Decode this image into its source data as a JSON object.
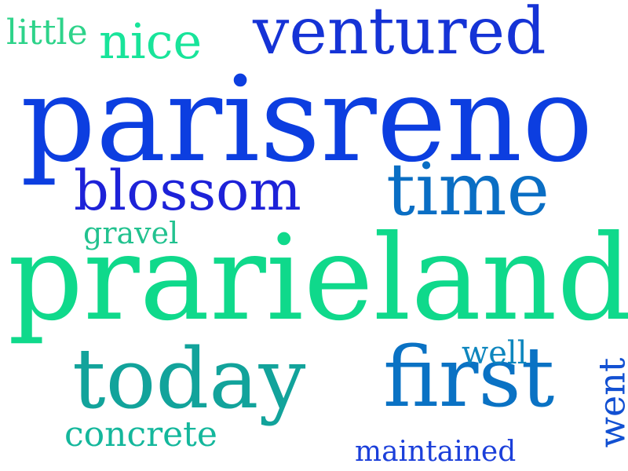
{
  "words": [
    {
      "text": "parisreno",
      "color": "#0c3ee0"
    },
    {
      "text": "prarieland",
      "color": "#0fd98b"
    },
    {
      "text": "today",
      "color": "#12a39b"
    },
    {
      "text": "first",
      "color": "#0a72c4"
    },
    {
      "text": "ventured",
      "color": "#1533d6"
    },
    {
      "text": "time",
      "color": "#0a6ec4"
    },
    {
      "text": "blossom",
      "color": "#1d22d8"
    },
    {
      "text": "nice",
      "color": "#18e49a"
    },
    {
      "text": "concrete",
      "color": "#14b79c"
    },
    {
      "text": "little",
      "color": "#2ed38a"
    },
    {
      "text": "gravel",
      "color": "#22c28f"
    },
    {
      "text": "maintained",
      "color": "#1b3fda"
    },
    {
      "text": "well",
      "color": "#0e86be"
    },
    {
      "text": "went",
      "color": "#1250d2"
    }
  ]
}
